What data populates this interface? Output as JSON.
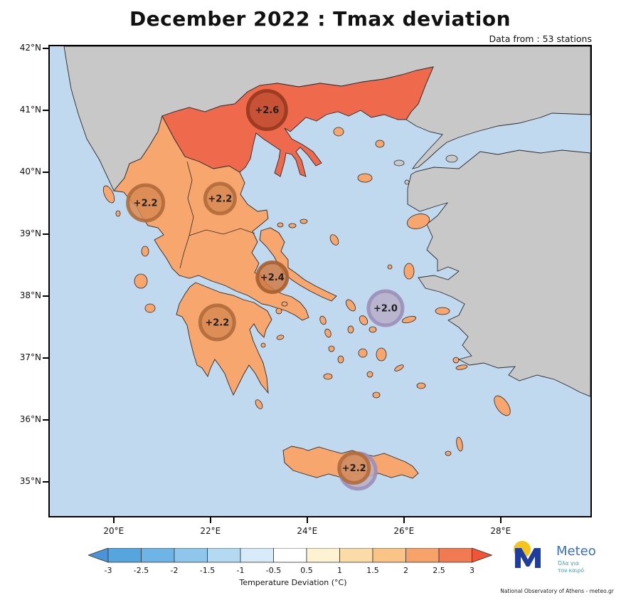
{
  "title": "December 2022 : Tmax deviation",
  "data_from": "Data from : 53 stations",
  "chart_data": {
    "type": "map",
    "axes": {
      "lat_labels": [
        "42°N",
        "41°N",
        "40°N",
        "39°N",
        "38°N",
        "37°N",
        "36°N",
        "35°N"
      ],
      "lon_labels": [
        "20°E",
        "22°E",
        "24°E",
        "26°E",
        "28°E"
      ]
    },
    "stations": [
      {
        "label": "+2.6",
        "deviation_c": 2.6,
        "lon": 23.17,
        "lat": 41.0,
        "r": 27,
        "fill": "#bf4e33",
        "stroke": "#96391f"
      },
      {
        "label": "+2.2",
        "deviation_c": 2.2,
        "lon": 20.66,
        "lat": 39.5,
        "r": 25,
        "fill": "#d78a52",
        "stroke": "#b06c3a"
      },
      {
        "label": "+2.2",
        "deviation_c": 2.2,
        "lon": 22.2,
        "lat": 39.57,
        "r": 21,
        "fill": "#d78a52",
        "stroke": "#b06c3a"
      },
      {
        "label": "+2.4",
        "deviation_c": 2.4,
        "lon": 23.28,
        "lat": 38.3,
        "r": 21,
        "fill": "#cf7a45",
        "stroke": "#a65f30"
      },
      {
        "label": "+2.2",
        "deviation_c": 2.2,
        "lon": 22.14,
        "lat": 37.57,
        "r": 24,
        "fill": "#d78a52",
        "stroke": "#b06c3a"
      },
      {
        "label": "+2.0",
        "deviation_c": 2.0,
        "lon": 25.62,
        "lat": 37.8,
        "r": 24,
        "fill": "#b9aec9",
        "stroke": "#9b8fb8"
      },
      {
        "label": "",
        "deviation_c": null,
        "lon": 25.05,
        "lat": 35.17,
        "r": 25,
        "fill": "#b9aec9",
        "stroke": "#9b8fb8"
      },
      {
        "label": "+2.2",
        "deviation_c": 2.2,
        "lon": 24.97,
        "lat": 35.22,
        "r": 21,
        "fill": "#d78a52",
        "stroke": "#b06c3a"
      }
    ],
    "colorbar": {
      "tick_labels": [
        "-3",
        "-2.5",
        "-2",
        "-1.5",
        "-1",
        "-0.5",
        "0.5",
        "1",
        "1.5",
        "2",
        "2.5",
        "3"
      ],
      "segment_colors": [
        "#56a5de",
        "#6fb4e6",
        "#8fc6ec",
        "#b4daf3",
        "#d7ebfa",
        "#ffffff",
        "#fdf2d2",
        "#fbdca9",
        "#f9c486",
        "#f6a269",
        "#f27a50"
      ],
      "arrow_left_color": "#4a95d9",
      "arrow_right_color": "#ee5636",
      "caption": "Temperature Deviation (°C)"
    }
  },
  "map_colors": {
    "sea": "#c0d9ee",
    "neighbor_land": "#c8c8c8",
    "greece_fill": "#f7a76e",
    "north_region_fill": "#ef6a4c",
    "coastline": "#2b2b2b"
  },
  "branding": {
    "name": "Meteo",
    "tagline_line1": "Όλα για",
    "tagline_line2": "τον καιρό",
    "credit": "National Observatory of Athens - meteo.gr"
  }
}
